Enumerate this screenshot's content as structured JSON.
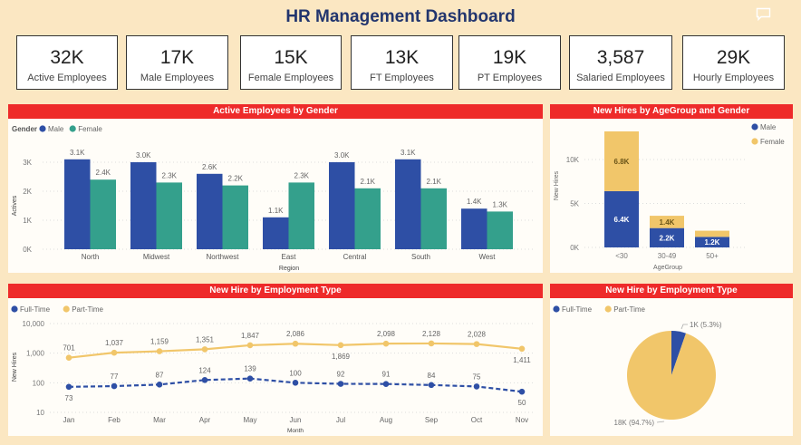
{
  "header": {
    "title": "HR Management Dashboard",
    "icon": "comment-icon"
  },
  "kpis": [
    {
      "value": "32K",
      "label": "Active Employees"
    },
    {
      "value": "17K",
      "label": "Male Employees"
    },
    {
      "value": "15K",
      "label": "Female Employees"
    },
    {
      "value": "13K",
      "label": "FT Employees"
    },
    {
      "value": "19K",
      "label": "PT Employees"
    },
    {
      "value": "3,587",
      "label": "Salaried Employees"
    },
    {
      "value": "29K",
      "label": "Hourly Employees"
    }
  ],
  "colors": {
    "male": "#2E4FA5",
    "female_teal": "#34A08C",
    "gold": "#F1C66A",
    "header_red": "#EE2A2A",
    "title": "#22356E"
  },
  "panels": {
    "gender": {
      "title": "Active Employees by Gender"
    },
    "agegroup": {
      "title": "New Hires by AgeGroup and Gender"
    },
    "line": {
      "title": "New Hire by Employment Type"
    },
    "pie": {
      "title": "New Hire by Employment Type"
    }
  },
  "chart_data": [
    {
      "id": "gender",
      "type": "bar",
      "title": "Active Employees by Gender",
      "legend_title": "Gender",
      "legend_position": "top-left",
      "xlabel": "Region",
      "ylabel": "Actives",
      "ylim": [
        0,
        3000
      ],
      "yticks": [
        0,
        1000,
        2000,
        3000
      ],
      "ytick_labels": [
        "0K",
        "1K",
        "2K",
        "3K"
      ],
      "categories": [
        "North",
        "Midwest",
        "Northwest",
        "East",
        "Central",
        "South",
        "West"
      ],
      "series": [
        {
          "name": "Male",
          "color": "#2E4FA5",
          "values": [
            3100,
            3000,
            2600,
            1100,
            3000,
            3100,
            1400
          ],
          "labels": [
            "3.1K",
            "3.0K",
            "2.6K",
            "1.1K",
            "3.0K",
            "3.1K",
            "1.4K"
          ]
        },
        {
          "name": "Female",
          "color": "#34A08C",
          "values": [
            2400,
            2300,
            2200,
            2300,
            2100,
            2100,
            1300
          ],
          "labels": [
            "2.4K",
            "2.3K",
            "2.2K",
            "2.3K",
            "2.1K",
            "2.1K",
            "1.3K"
          ]
        }
      ],
      "grid": true
    },
    {
      "id": "agegroup",
      "type": "bar",
      "stacked": true,
      "title": "New Hires by AgeGroup and Gender",
      "legend_position": "top-right",
      "xlabel": "AgeGroup",
      "ylabel": "New Hires",
      "ylim": [
        0,
        13500
      ],
      "yticks": [
        0,
        5000,
        10000
      ],
      "ytick_labels": [
        "0K",
        "5K",
        "10K"
      ],
      "categories": [
        "<30",
        "30-49",
        "50+"
      ],
      "series": [
        {
          "name": "Male",
          "color": "#2E4FA5",
          "values": [
            6400,
            2200,
            1200
          ],
          "labels": [
            "6.4K",
            "2.2K",
            "1.2K"
          ]
        },
        {
          "name": "Female",
          "color": "#F1C66A",
          "values": [
            6800,
            1400,
            700
          ],
          "labels": [
            "6.8K",
            "1.4K",
            ""
          ]
        }
      ],
      "grid": true
    },
    {
      "id": "line",
      "type": "line",
      "title": "New Hire by Employment Type",
      "legend_position": "top-left",
      "xlabel": "Month",
      "ylabel": "New Hires",
      "yscale": "log",
      "ylim": [
        10,
        10000
      ],
      "yticks": [
        10,
        100,
        1000,
        10000
      ],
      "ytick_labels": [
        "10",
        "100",
        "1,000",
        "10,000"
      ],
      "x": [
        "Jan",
        "Feb",
        "Mar",
        "Apr",
        "May",
        "Jun",
        "Jul",
        "Aug",
        "Sep",
        "Oct",
        "Nov"
      ],
      "series": [
        {
          "name": "Full-Time",
          "color": "#2E4FA5",
          "dashed": true,
          "values": [
            73,
            77,
            87,
            124,
            139,
            100,
            92,
            91,
            84,
            75,
            50
          ],
          "labels": [
            "73",
            "77",
            "87",
            "124",
            "139",
            "100",
            "92",
            "91",
            "84",
            "75",
            "50"
          ]
        },
        {
          "name": "Part-Time",
          "color": "#F1C66A",
          "dashed": false,
          "values": [
            701,
            1037,
            1159,
            1351,
            1847,
            2086,
            1869,
            2098,
            2128,
            2028,
            1411
          ],
          "labels": [
            "701",
            "1,037",
            "1,159",
            "1,351",
            "1,847",
            "2,086",
            "1,869",
            "2,098",
            "2,128",
            "2,028",
            "1,411"
          ]
        }
      ],
      "grid": true
    },
    {
      "id": "pie",
      "type": "pie",
      "title": "New Hire by Employment Type",
      "legend_position": "top-left",
      "slices": [
        {
          "name": "Full-Time",
          "color": "#2E4FA5",
          "percent": 5.3,
          "label": "1K (5.3%)"
        },
        {
          "name": "Part-Time",
          "color": "#F1C66A",
          "percent": 94.7,
          "label": "18K (94.7%)"
        }
      ]
    }
  ]
}
